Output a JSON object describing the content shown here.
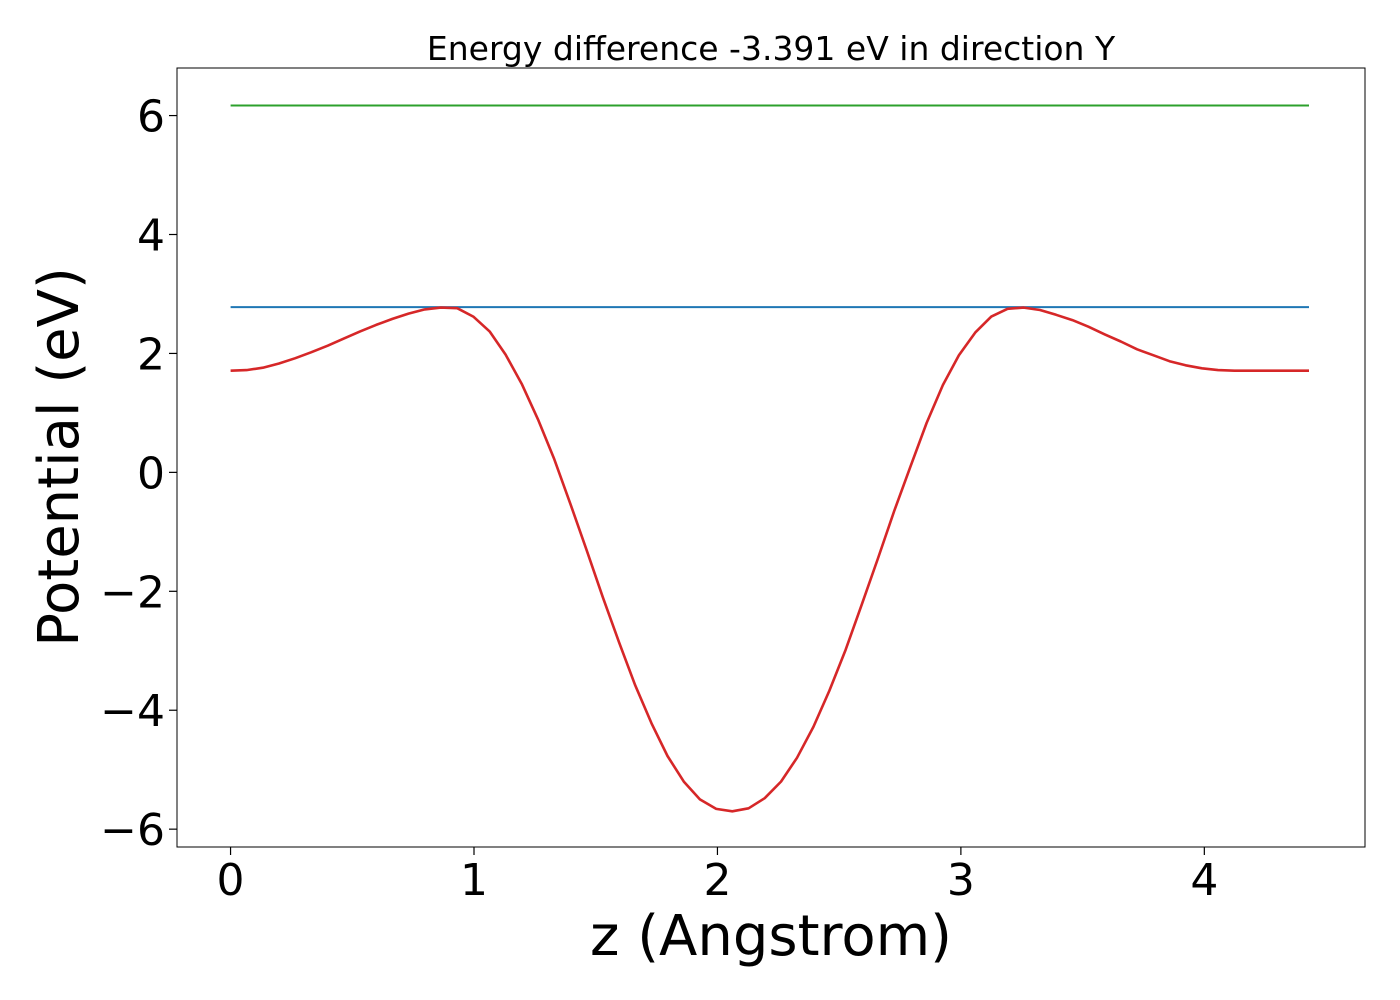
{
  "chart_data": {
    "type": "line",
    "title": "Energy difference -3.391 eV in direction Y",
    "xlabel": "z (Angstrom)",
    "ylabel": "Potential (eV)",
    "xlim": [
      -0.22,
      4.66
    ],
    "ylim": [
      -6.3,
      6.8
    ],
    "xticks": [
      0,
      1,
      2,
      3,
      4
    ],
    "xtick_labels": [
      "0",
      "1",
      "2",
      "3",
      "4"
    ],
    "yticks": [
      -6,
      -4,
      -2,
      0,
      2,
      4,
      6
    ],
    "ytick_labels": [
      "−6",
      "−4",
      "−2",
      "0",
      "2",
      "4",
      "6"
    ],
    "grid": false,
    "series": [
      {
        "color": "#2ca02c",
        "x": [
          0,
          4.43
        ],
        "y": [
          6.17,
          6.17
        ]
      },
      {
        "color": "#1f77b4",
        "x": [
          0,
          4.43
        ],
        "y": [
          2.78,
          2.78
        ]
      },
      {
        "color": "#d62728",
        "x": [
          0,
          0.066,
          0.133,
          0.199,
          0.266,
          0.332,
          0.399,
          0.465,
          0.532,
          0.598,
          0.665,
          0.731,
          0.798,
          0.864,
          0.931,
          0.997,
          1.064,
          1.13,
          1.197,
          1.263,
          1.33,
          1.396,
          1.463,
          1.529,
          1.596,
          1.662,
          1.729,
          1.795,
          1.862,
          1.928,
          1.995,
          2.061,
          2.128,
          2.194,
          2.261,
          2.327,
          2.394,
          2.46,
          2.527,
          2.593,
          2.66,
          2.726,
          2.793,
          2.859,
          2.926,
          2.992,
          3.059,
          3.125,
          3.192,
          3.258,
          3.325,
          3.391,
          3.458,
          3.524,
          3.591,
          3.657,
          3.724,
          3.79,
          3.857,
          3.923,
          3.99,
          4.056,
          4.123,
          4.189,
          4.256,
          4.322,
          4.43
        ],
        "y": [
          1.71,
          1.72,
          1.76,
          1.83,
          1.92,
          2.02,
          2.13,
          2.25,
          2.37,
          2.48,
          2.58,
          2.67,
          2.74,
          2.77,
          2.76,
          2.62,
          2.37,
          1.98,
          1.48,
          0.89,
          0.22,
          -0.53,
          -1.31,
          -2.1,
          -2.86,
          -3.58,
          -4.22,
          -4.77,
          -5.2,
          -5.5,
          -5.66,
          -5.7,
          -5.65,
          -5.48,
          -5.2,
          -4.8,
          -4.28,
          -3.67,
          -2.98,
          -2.22,
          -1.44,
          -0.65,
          0.1,
          0.83,
          1.47,
          1.97,
          2.35,
          2.62,
          2.75,
          2.77,
          2.73,
          2.65,
          2.56,
          2.45,
          2.32,
          2.2,
          2.07,
          1.97,
          1.87,
          1.8,
          1.75,
          1.72,
          1.71,
          1.71,
          1.71,
          1.71,
          1.71
        ]
      }
    ]
  }
}
